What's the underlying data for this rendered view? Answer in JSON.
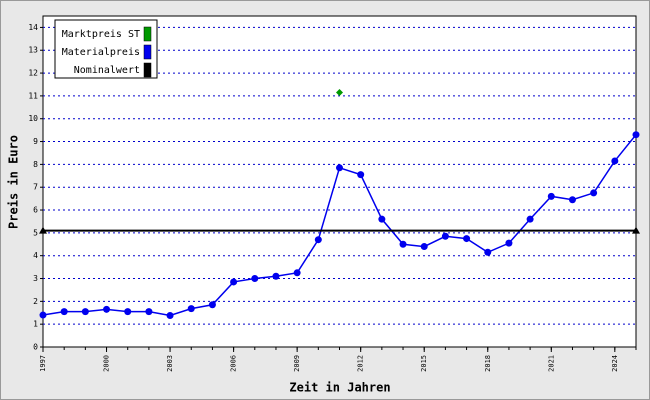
{
  "chart_data": {
    "type": "line",
    "xlabel": "Zeit in Jahren",
    "ylabel": "Preis in Euro",
    "xlim": [
      1997,
      2025
    ],
    "xticks": [
      1997,
      2000,
      2003,
      2006,
      2009,
      2012,
      2015,
      2018,
      2021,
      2024
    ],
    "ylim": [
      0,
      14.5
    ],
    "yticks": [
      0,
      1,
      2,
      3,
      4,
      5,
      6,
      7,
      8,
      9,
      10,
      11,
      12,
      13,
      14
    ],
    "grid": true,
    "legend": "upper left",
    "series": [
      {
        "name": "Marktpreis ST",
        "color": "#009900",
        "marker": "diamond",
        "x": [
          2011
        ],
        "values": [
          11.15
        ]
      },
      {
        "name": "Materialpreis",
        "color": "#0000ee",
        "marker": "circle",
        "x": [
          1997,
          1998,
          1999,
          2000,
          2001,
          2002,
          2003,
          2004,
          2005,
          2006,
          2007,
          2008,
          2009,
          2010,
          2011,
          2012,
          2013,
          2014,
          2015,
          2016,
          2017,
          2018,
          2019,
          2020,
          2021,
          2022,
          2023,
          2024,
          2025
        ],
        "values": [
          1.4,
          1.55,
          1.55,
          1.65,
          1.55,
          1.55,
          1.38,
          1.68,
          1.85,
          2.85,
          3.0,
          3.1,
          3.25,
          4.7,
          7.85,
          7.55,
          5.6,
          4.5,
          4.4,
          4.85,
          4.75,
          4.15,
          4.55,
          5.6,
          6.6,
          6.45,
          6.75,
          8.15,
          9.3
        ]
      },
      {
        "name": "Nominalwert",
        "color": "#000000",
        "marker": "triangle",
        "x": [
          1997,
          2025
        ],
        "values": [
          5.1,
          5.1
        ]
      }
    ]
  }
}
